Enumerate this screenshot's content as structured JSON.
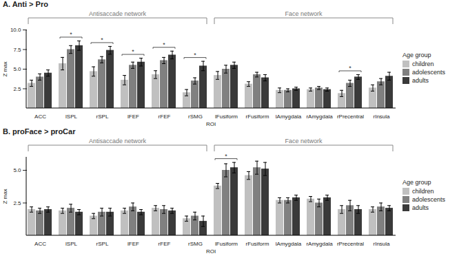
{
  "chart_data": [
    {
      "type": "bar",
      "title": "A. Anti > Pro",
      "x_label": "ROI",
      "y_label": "Z max",
      "categories": [
        "ACC",
        "lSPL",
        "rSPL",
        "lFEF",
        "rFEF",
        "rSMG",
        "lFusiform",
        "rFusiform",
        "lAmygdala",
        "rAmygdala",
        "rPrecentral",
        "rInsula"
      ],
      "series": [
        {
          "name": "children",
          "color": "#c0c0c0",
          "values": [
            3.2,
            5.7,
            4.7,
            3.6,
            4.3,
            2.0,
            4.2,
            3.1,
            2.3,
            2.4,
            1.9,
            2.6
          ],
          "errors": [
            0.4,
            0.8,
            0.6,
            0.6,
            0.5,
            0.4,
            0.5,
            0.3,
            0.3,
            0.2,
            0.4,
            0.4
          ]
        },
        {
          "name": "adolescents",
          "color": "#808080",
          "values": [
            4.0,
            7.5,
            6.2,
            5.5,
            6.1,
            3.5,
            5.0,
            4.3,
            2.3,
            2.6,
            3.2,
            3.4
          ],
          "errors": [
            0.4,
            0.5,
            0.4,
            0.4,
            0.4,
            0.4,
            0.5,
            0.3,
            0.2,
            0.2,
            0.4,
            0.4
          ]
        },
        {
          "name": "adults",
          "color": "#3a3a3a",
          "values": [
            4.5,
            8.0,
            7.4,
            5.9,
            6.8,
            5.4,
            5.5,
            3.9,
            2.5,
            2.4,
            4.0,
            4.1
          ],
          "errors": [
            0.4,
            0.6,
            0.5,
            0.5,
            0.5,
            0.6,
            0.4,
            0.4,
            0.2,
            0.2,
            0.3,
            0.5
          ]
        }
      ],
      "ylim": [
        0,
        10
      ],
      "yticks": [
        2.5,
        {
          "value": 5,
          "label": "5.0"
        },
        7.5,
        {
          "value": 10,
          "label": "10.0"
        }
      ],
      "legend": "right",
      "legend_title": "Age group",
      "groups": [
        {
          "label": "Antisaccade network",
          "from": "ACC",
          "to": "rSMG"
        },
        {
          "label": "Face network",
          "from": "lFusiform",
          "to": "rInsula"
        }
      ],
      "annotations": [
        {
          "category": "lSPL",
          "text": "*"
        },
        {
          "category": "rSPL",
          "text": "*"
        },
        {
          "category": "lFEF",
          "text": "*"
        },
        {
          "category": "rFEF",
          "text": "*"
        },
        {
          "category": "rSMG",
          "text": "*"
        },
        {
          "category": "rPrecentral",
          "text": "*"
        }
      ]
    },
    {
      "type": "bar",
      "title": "B. proFace > proCar",
      "x_label": "ROI",
      "y_label": "Z max",
      "categories": [
        "ACC",
        "lSPL",
        "rSPL",
        "lFEF",
        "rFEF",
        "rSMG",
        "lFusiform",
        "rFusiform",
        "lAmygdala",
        "rAmygdala",
        "rPrecentral",
        "rInsula"
      ],
      "series": [
        {
          "name": "children",
          "color": "#c0c0c0",
          "values": [
            2.0,
            1.9,
            1.5,
            1.9,
            2.1,
            1.3,
            3.8,
            4.6,
            2.7,
            2.8,
            2.0,
            2.0
          ],
          "errors": [
            0.2,
            0.2,
            0.2,
            0.2,
            0.2,
            0.2,
            0.2,
            0.3,
            0.2,
            0.2,
            0.3,
            0.2
          ]
        },
        {
          "name": "adolescents",
          "color": "#808080",
          "values": [
            1.9,
            2.1,
            1.8,
            2.2,
            2.0,
            1.5,
            5.0,
            5.2,
            2.7,
            2.5,
            2.3,
            2.2
          ],
          "errors": [
            0.2,
            0.3,
            0.3,
            0.3,
            0.3,
            0.3,
            0.5,
            0.5,
            0.2,
            0.3,
            0.4,
            0.3
          ]
        },
        {
          "name": "adults",
          "color": "#3a3a3a",
          "values": [
            2.0,
            1.8,
            1.8,
            1.8,
            1.9,
            1.1,
            5.2,
            5.1,
            2.9,
            2.9,
            2.0,
            2.1
          ],
          "errors": [
            0.2,
            0.2,
            0.3,
            0.2,
            0.2,
            0.4,
            0.4,
            0.5,
            0.2,
            0.2,
            0.3,
            0.2
          ]
        }
      ],
      "ylim": [
        0,
        6
      ],
      "yticks": [
        2.5,
        {
          "value": 5,
          "label": "5.0"
        }
      ],
      "legend": "right",
      "legend_title": "Age group",
      "groups": [
        {
          "label": "Antisaccade network",
          "from": "ACC",
          "to": "rSMG"
        },
        {
          "label": "Face network",
          "from": "lFusiform",
          "to": "rInsula"
        }
      ],
      "annotations": [
        {
          "category": "lFusiform",
          "text": "*"
        }
      ]
    }
  ]
}
